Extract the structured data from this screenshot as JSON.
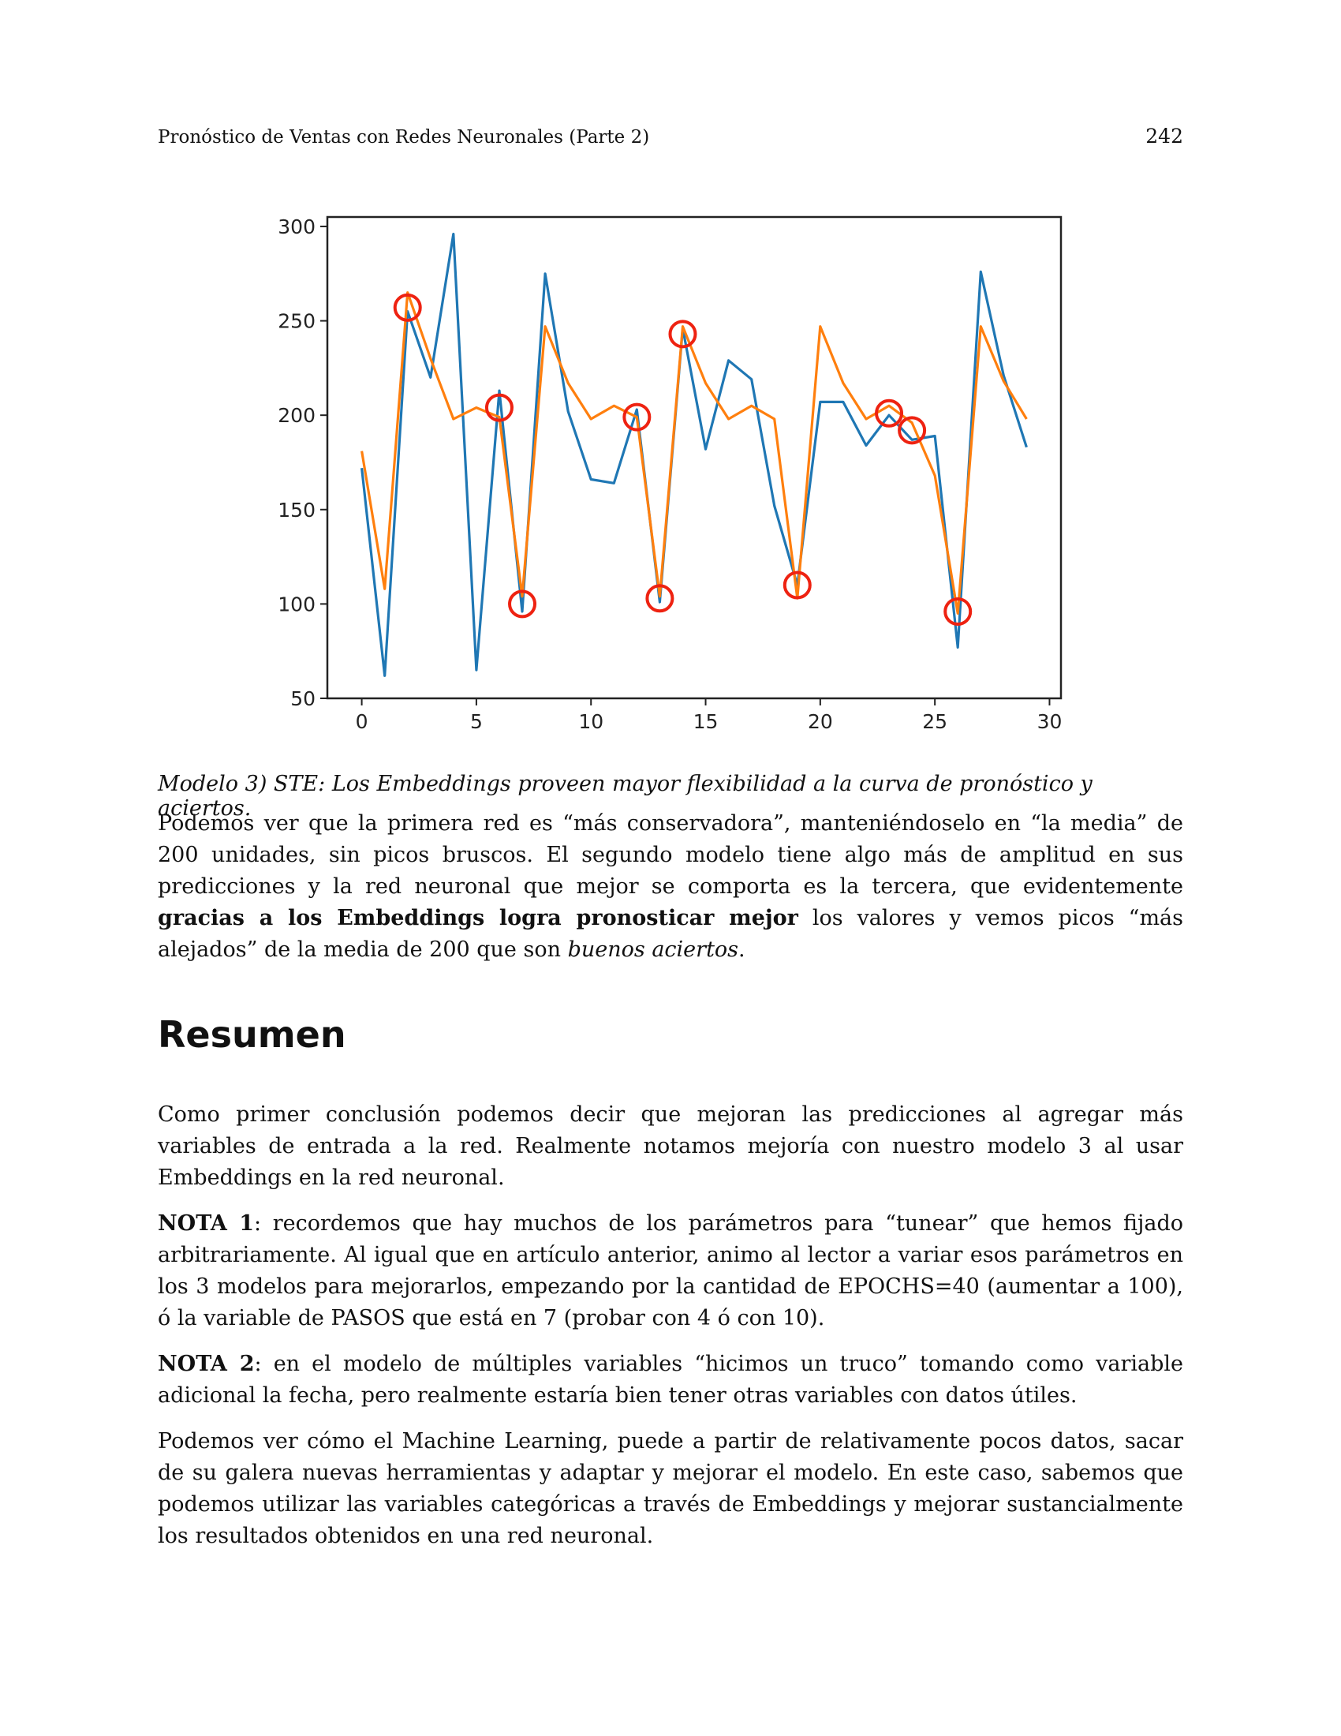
{
  "header": {
    "title": "Pronóstico de Ventas con Redes Neuronales (Parte 2)",
    "page_number": "242"
  },
  "chart_data": {
    "type": "line",
    "x": [
      0,
      1,
      2,
      3,
      4,
      5,
      6,
      7,
      8,
      9,
      10,
      11,
      12,
      13,
      14,
      15,
      16,
      17,
      18,
      19,
      20,
      21,
      22,
      23,
      24,
      25,
      26,
      27,
      28,
      29
    ],
    "series": [
      {
        "color": "#1f77b4",
        "values": [
          172,
          62,
          255,
          220,
          296,
          65,
          213,
          96,
          275,
          202,
          166,
          164,
          203,
          101,
          246,
          182,
          229,
          219,
          152,
          110,
          207,
          207,
          184,
          200,
          187,
          189,
          77,
          276,
          221,
          183
        ]
      },
      {
        "color": "#ff7f0e",
        "values": [
          181,
          108,
          265,
          230,
          198,
          204,
          199,
          104,
          247,
          217,
          198,
          205,
          199,
          104,
          247,
          217,
          198,
          205,
          198,
          103,
          247,
          217,
          198,
          205,
          196,
          168,
          95,
          247,
          218,
          198
        ]
      }
    ],
    "circled_points": [
      {
        "x": 2,
        "y": 257
      },
      {
        "x": 6,
        "y": 204
      },
      {
        "x": 7,
        "y": 100
      },
      {
        "x": 12,
        "y": 199
      },
      {
        "x": 13,
        "y": 103
      },
      {
        "x": 14,
        "y": 243
      },
      {
        "x": 19,
        "y": 110
      },
      {
        "x": 23,
        "y": 201
      },
      {
        "x": 24,
        "y": 192
      },
      {
        "x": 26,
        "y": 96
      }
    ],
    "circle_color": "#ee2211",
    "xlim": [
      -1.5,
      30.5
    ],
    "ylim": [
      50,
      305
    ],
    "xticks": [
      "0",
      "5",
      "10",
      "15",
      "20",
      "25",
      "30"
    ],
    "yticks": [
      "50",
      "100",
      "150",
      "200",
      "250",
      "300"
    ],
    "grid": false
  },
  "caption": "Modelo 3) STE: Los Embeddings proveen mayor flexibilidad a la curva de pronóstico y aciertos.",
  "paragraph1": {
    "part1": "Podemos ver que la primera red es “más conservadora”, manteniéndoselo en “la media” de 200 unidades, sin picos bruscos. El segundo modelo tiene algo más de amplitud en sus predicciones y la red neuronal que mejor se comporta es la tercera, que evidentemente ",
    "bold": "gracias a los Embeddings logra pronosticar mejor",
    "part2": " los valores y vemos picos “más alejados” de la media de 200 que son ",
    "italic": "buenos aciertos",
    "part3": "."
  },
  "section_title": "Resumen",
  "paragraph2": "Como primer conclusión podemos decir que mejoran las predicciones al agregar más variables de entrada a la red. Realmente notamos mejoría con nuestro modelo 3 al usar Embeddings en la red neuronal.",
  "note1": {
    "label": "NOTA 1",
    "text": ": recordemos que hay muchos de los parámetros para “tunear” que hemos fijado arbitrariamente. Al igual que en artículo anterior, animo al lector a variar esos parámetros en los 3 modelos para mejorarlos, empezando por la cantidad de EPOCHS=40 (aumentar a 100), ó la variable de PASOS que está en 7 (probar con 4 ó con 10)."
  },
  "note2": {
    "label": "NOTA 2",
    "text": ": en el modelo de múltiples variables “hicimos un truco” tomando como variable adicional la fecha, pero realmente estaría bien tener otras variables con datos útiles."
  },
  "paragraph3": "Podemos ver cómo el Machine Learning, puede a partir de relativamente pocos datos, sacar de su galera nuevas herramientas y adaptar y mejorar el modelo. En este caso, sabemos que podemos utilizar las variables categóricas a través de Embeddings y mejorar sustancialmente los resultados obtenidos en una red neuronal."
}
